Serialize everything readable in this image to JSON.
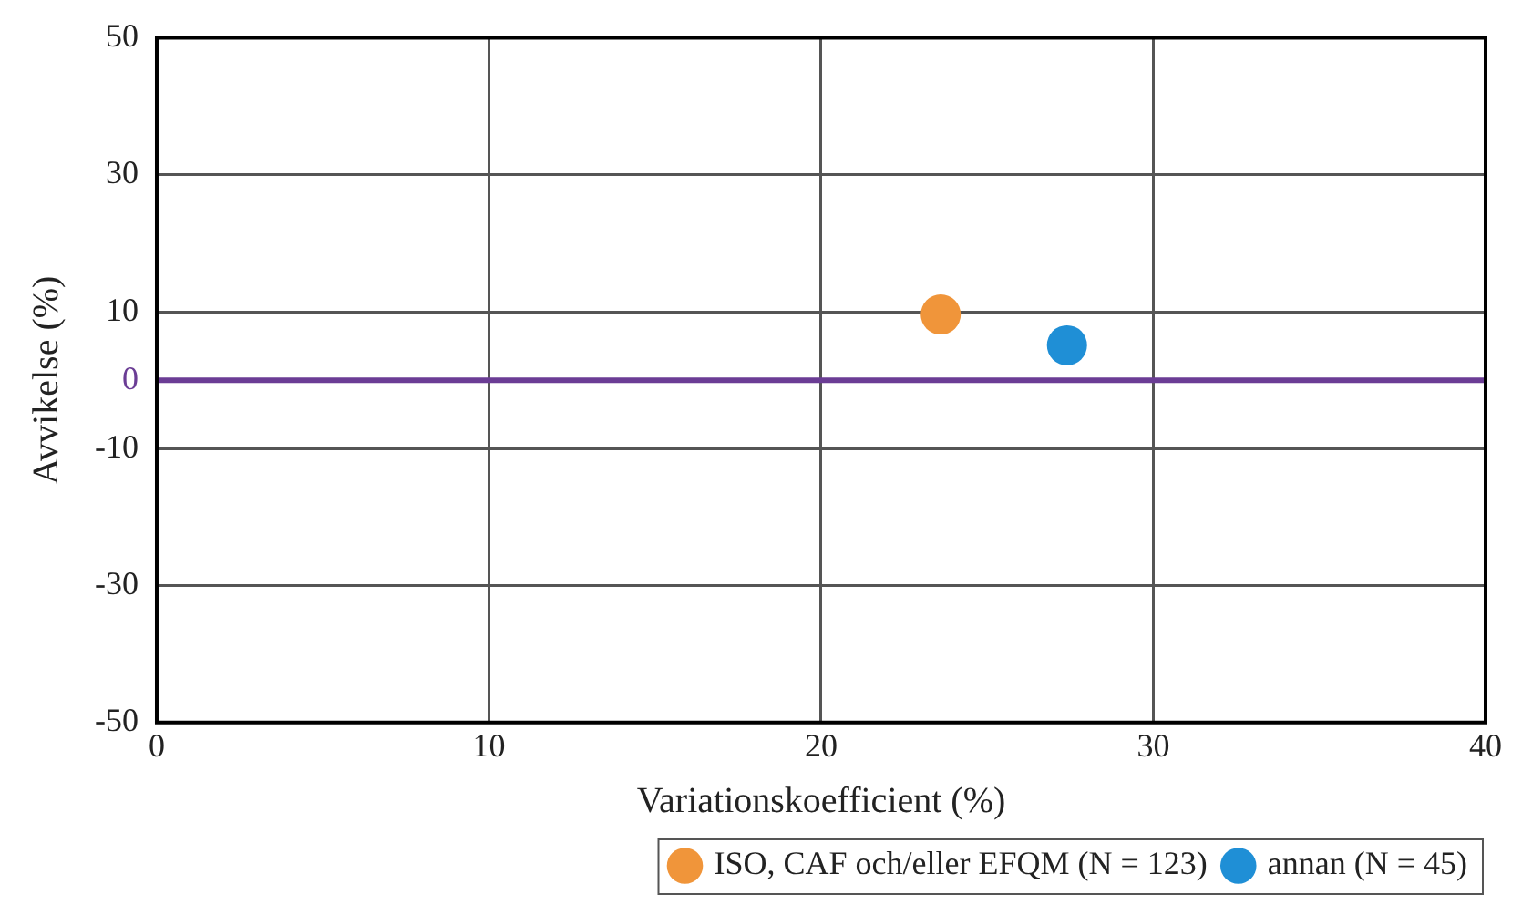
{
  "chart_data": {
    "type": "scatter",
    "xlabel": "Variationskoefficient (%)",
    "ylabel": "Avvikelse (%)",
    "xlim": [
      0,
      40
    ],
    "xticks": [
      0,
      10,
      20,
      30,
      40
    ],
    "ylim": [
      -50,
      50
    ],
    "yticks": [
      -50,
      -30,
      -10,
      0,
      10,
      30,
      50
    ],
    "series": [
      {
        "name": "ISO, CAF och/eller EFQM (N = 123)",
        "color": "#f0953a",
        "x": [
          23.6
        ],
        "values": [
          9.6
        ]
      },
      {
        "name": "annan (N = 45)",
        "color": "#1f8fd6",
        "x": [
          27.4
        ],
        "values": [
          5.1
        ]
      }
    ],
    "ref_lines": [
      {
        "axis": "y",
        "value": 0,
        "color": "#6b3d95"
      }
    ],
    "grid": true,
    "legend": "bottom",
    "marker": "circle"
  }
}
